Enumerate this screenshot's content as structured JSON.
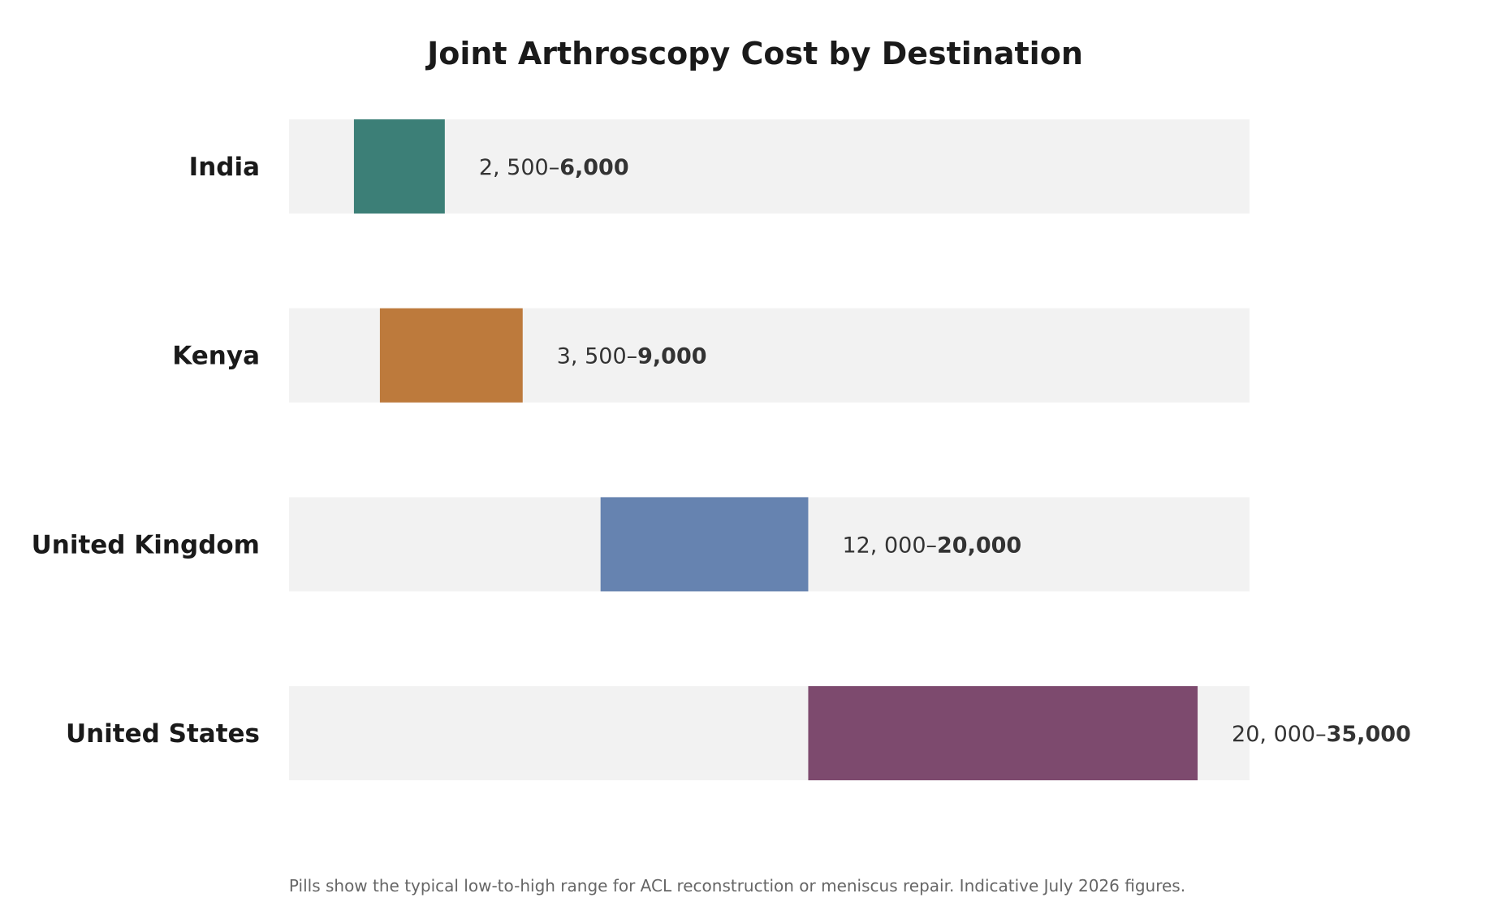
{
  "chart_data": {
    "type": "bar",
    "title": "Joint Arthroscopy Cost by Destination",
    "footnote": "Pills show the typical low-to-high range for ACL reconstruction or meniscus repair. Indicative July 2026 figures.",
    "xlim": [
      0,
      37000
    ],
    "grid": false,
    "legend": "none",
    "categories": [
      "India",
      "Kenya",
      "United Kingdom",
      "United States"
    ],
    "ranges": [
      {
        "category": "India",
        "low": 2500,
        "high": 6000,
        "low_label": "2, 500–",
        "high_label": "6,000",
        "color": "#3c7f77"
      },
      {
        "category": "Kenya",
        "low": 3500,
        "high": 9000,
        "low_label": "3, 500–",
        "high_label": "9,000",
        "color": "#bd7a3c"
      },
      {
        "category": "United Kingdom",
        "low": 12000,
        "high": 20000,
        "low_label": "12, 000–",
        "high_label": "20,000",
        "color": "#6683b0"
      },
      {
        "category": "United States",
        "low": 20000,
        "high": 35000,
        "low_label": "20, 000–",
        "high_label": "35,000",
        "color": "#7d4a6e"
      }
    ]
  }
}
